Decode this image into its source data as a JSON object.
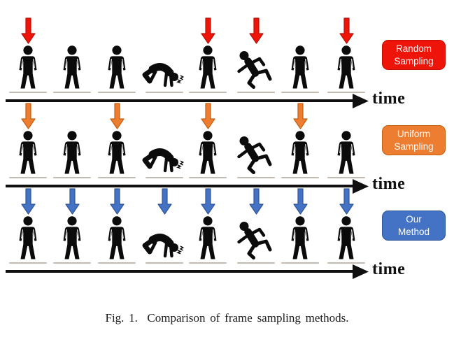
{
  "caption": "Fig. 1.  Comparison of frame sampling methods.",
  "figure_color": "#0b0b0b",
  "ground_line_color": "#c3bbb2",
  "axis_color": "#101010",
  "slots": {
    "x_centers": [
      40,
      103,
      167,
      235,
      297,
      366,
      429,
      495
    ],
    "poses": [
      "standing",
      "standing",
      "standing",
      "fallen",
      "standing",
      "falling",
      "standing",
      "standing"
    ]
  },
  "icons": {
    "sample-arrow-icon": "solid downward block arrow marking a sampled frame",
    "person-standing-icon": "standing person pictogram",
    "person-fallen-icon": "person collapsed on ground with impact squiggles",
    "person-falling-icon": "person slipping / falling backward",
    "time-axis-arrowhead-icon": "solid right-pointing triangle at end of time axis"
  },
  "rows": [
    {
      "id": "random-sampling",
      "label_line1": "Random",
      "label_line2": "Sampling",
      "time_label": "time",
      "sampled": [
        1,
        0,
        0,
        0,
        1,
        1,
        0,
        1
      ],
      "colors": {
        "arrow_fill": "#ee1409",
        "arrow_edge": "#b81004",
        "box_fill": "#ee1409",
        "box_edge": "#c11005"
      }
    },
    {
      "id": "uniform-sampling",
      "label_line1": "Uniform",
      "label_line2": "Sampling",
      "time_label": "time",
      "sampled": [
        1,
        0,
        1,
        0,
        1,
        0,
        1,
        0
      ],
      "colors": {
        "arrow_fill": "#ed7d31",
        "arrow_edge": "#c55f11",
        "box_fill": "#ed7d31",
        "box_edge": "#c55f11"
      }
    },
    {
      "id": "our-method",
      "label_line1": "Our",
      "label_line2": "Method",
      "time_label": "time",
      "sampled": [
        1,
        1,
        1,
        1,
        1,
        1,
        1,
        1
      ],
      "colors": {
        "arrow_fill": "#4472c4",
        "arrow_edge": "#2f5597",
        "box_fill": "#4472c4",
        "box_edge": "#2f5597"
      }
    }
  ]
}
